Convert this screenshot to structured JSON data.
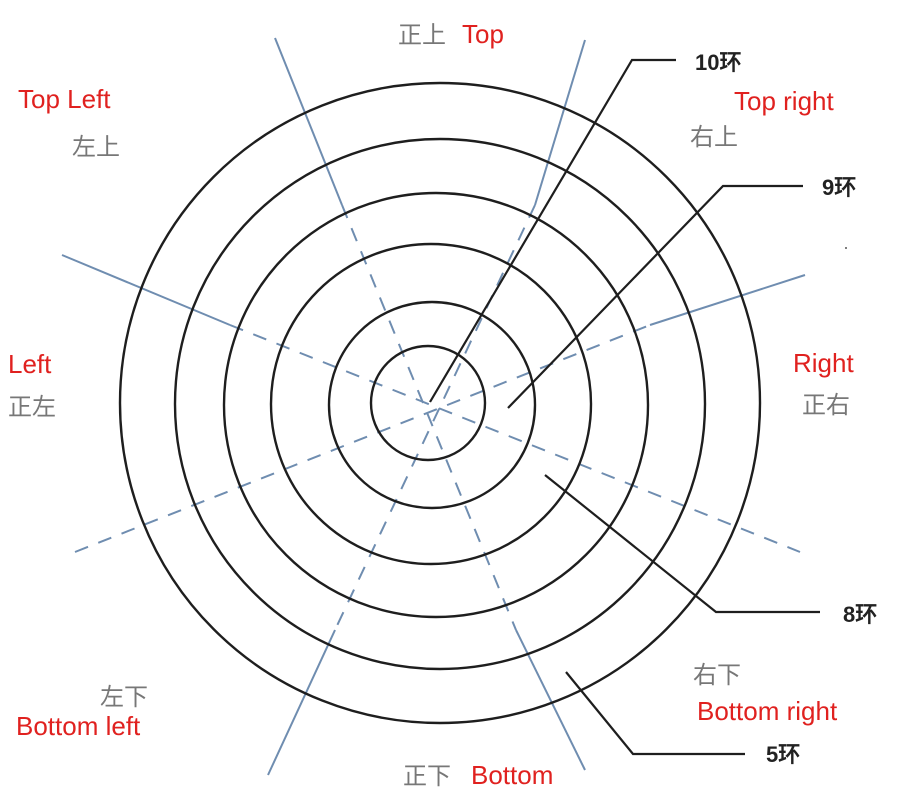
{
  "diagram": {
    "ring_count": 6,
    "colors": {
      "ring": "#1e1e1e",
      "guide": "#6f8db0",
      "label_zh": "#777777",
      "label_en": "#e0211f",
      "ring_label": "#222222"
    },
    "directions": {
      "top": {
        "zh": "正上",
        "en": "Top"
      },
      "top_left": {
        "zh": "左上",
        "en": "Top Left"
      },
      "top_right": {
        "zh": "右上",
        "en": "Top right"
      },
      "left": {
        "zh": "正左",
        "en": "Left"
      },
      "right": {
        "zh": "正右",
        "en": "Right"
      },
      "bottom_left": {
        "zh": "左下",
        "en": "Bottom left"
      },
      "bottom_right": {
        "zh": "右下",
        "en": "Bottom right"
      },
      "bottom": {
        "zh": "正下",
        "en": "Bottom"
      }
    },
    "rings": {
      "ring_10": "10环",
      "ring_9": "9环",
      "ring_8": "8环",
      "ring_5": "5环"
    }
  }
}
